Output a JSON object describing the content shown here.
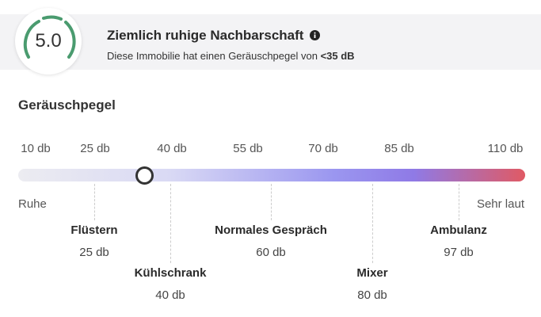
{
  "score": "5.0",
  "header": {
    "title": "Ziemlich ruhige Nachbarschaft",
    "subtitle": "Diese Immobilie hat einen Geräuschpegel von",
    "level": "<35 dB"
  },
  "section_title": "Geräuschpegel",
  "scale_labels": [
    "10 db",
    "25 db",
    "40 db",
    "55 db",
    "70 db",
    "85 db",
    "110 db"
  ],
  "scale_ends": {
    "low": "Ruhe",
    "high": "Sehr laut"
  },
  "markers": [
    {
      "name": "Flüstern",
      "value": "25 db"
    },
    {
      "name": "Kühlschrank",
      "value": "40 db"
    },
    {
      "name": "Normales Gespräch",
      "value": "60 db"
    },
    {
      "name": "Mixer",
      "value": "80 db"
    },
    {
      "name": "Ambulanz",
      "value": "97 db"
    }
  ]
}
